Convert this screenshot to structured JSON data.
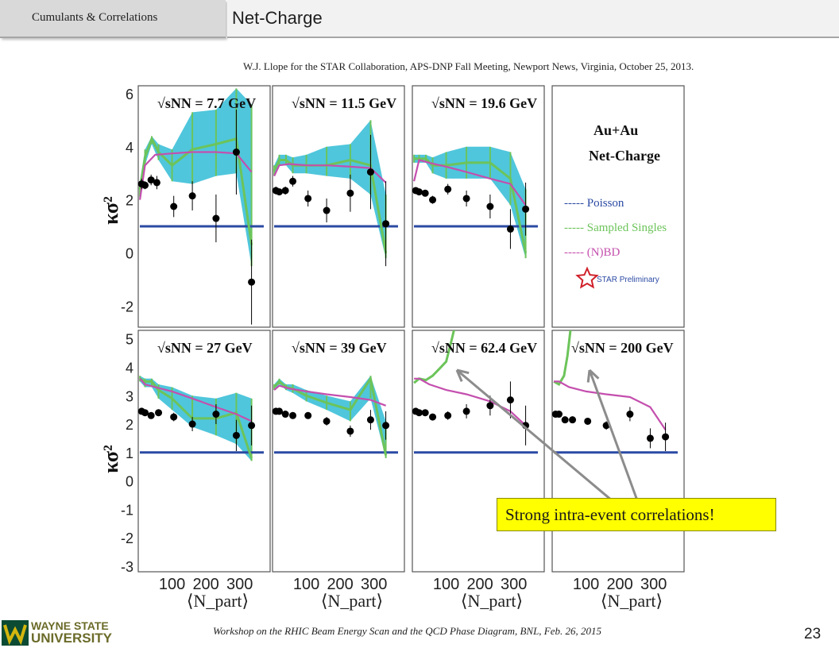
{
  "header": {
    "section_tab": "Cumulants & Correlations",
    "slide_title": "Net-Charge"
  },
  "citation": "W.J. Llope for the STAR Collaboration, APS-DNP Fall Meeting, Newport News, Virginia, October 25, 2013.",
  "callout": "Strong intra-event correlations!",
  "footer": {
    "workshop": "Workshop on the RHIC Beam Energy Scan and the QCD Phase Diagram, BNL, Feb. 26, 2015",
    "page_number": "23",
    "logo_line1": "WAYNE STATE",
    "logo_line2": "UNIVERSITY"
  },
  "colors": {
    "band_fill": "#4fc6dc",
    "sampled_singles": "#6cc45a",
    "nbd": "#c44fae",
    "poisson": "#2b4aa3",
    "data_points": "#000000",
    "callout_bg": "#ffff00"
  },
  "chart_data": {
    "type": "scatter",
    "xlabel": "⟨N_part⟩",
    "ylabel": "κσ²",
    "x_ticks": [
      "100",
      "200",
      "300"
    ],
    "grid": false,
    "legend_panel": {
      "title1": "Au+Au",
      "title2": "Net-Charge",
      "entries": [
        {
          "label": "----- Poisson",
          "color": "#2b4aa3"
        },
        {
          "label": "----- Sampled Singles",
          "color": "#6cc45a"
        },
        {
          "label": "----- (N)BD",
          "color": "#c44fae"
        }
      ],
      "preliminary": "STAR Preliminary"
    },
    "rows": [
      {
        "ylim": [
          -2.8,
          6.3
        ],
        "y_ticks": [
          "6",
          "4",
          "2",
          "0",
          "-2"
        ],
        "panels": [
          {
            "energy": "7.7 GeV",
            "points": {
              "x": [
                10,
                20,
                38,
                55,
                105,
                160,
                230,
                290,
                335
              ],
              "y": [
                2.6,
                2.55,
                2.75,
                2.65,
                1.75,
                2.15,
                1.3,
                3.8,
                -1.1
              ],
              "err": [
                0.2,
                0.15,
                0.2,
                0.25,
                0.4,
                0.55,
                0.9,
                1.6,
                1.6
              ]
            },
            "nbd": {
              "x": [
                5,
                20,
                50,
                100,
                160,
                230,
                290,
                335
              ],
              "y": [
                2.0,
                3.3,
                3.7,
                3.75,
                3.8,
                3.8,
                3.75,
                3.05
              ]
            },
            "sampled": {
              "x": [
                5,
                20,
                40,
                60,
                100,
                160,
                230,
                290,
                335
              ],
              "y": [
                2.4,
                3.6,
                4.3,
                3.8,
                3.3,
                3.9,
                4.1,
                4.3,
                0.3
              ]
            },
            "band_hi": [
              2.7,
              3.9,
              4.4,
              4.1,
              3.9,
              5.3,
              5.4,
              6.2,
              5.6
            ],
            "band_lo": [
              2.1,
              3.3,
              4.1,
              3.5,
              2.7,
              2.6,
              2.9,
              3.0,
              -0.5
            ]
          },
          {
            "energy": "11.5 GeV",
            "points": {
              "x": [
                10,
                20,
                38,
                60,
                105,
                160,
                230,
                290,
                335
              ],
              "y": [
                2.35,
                2.3,
                2.35,
                2.7,
                2.05,
                1.6,
                2.25,
                3.05,
                1.1
              ],
              "err": [
                0.15,
                0.12,
                0.15,
                0.2,
                0.3,
                0.45,
                0.7,
                1.4,
                1.6
              ]
            },
            "nbd": {
              "x": [
                5,
                20,
                50,
                100,
                160,
                230,
                290,
                335
              ],
              "y": [
                2.9,
                3.3,
                3.35,
                3.3,
                3.3,
                3.25,
                3.2,
                2.65
              ]
            },
            "sampled": {
              "x": [
                5,
                20,
                40,
                60,
                100,
                160,
                230,
                290,
                335
              ],
              "y": [
                3.1,
                3.5,
                3.5,
                3.3,
                3.3,
                3.3,
                3.5,
                3.3,
                0.0
              ]
            },
            "band_hi": [
              3.3,
              3.7,
              3.7,
              3.6,
              3.7,
              4.0,
              4.1,
              5.0,
              2.2
            ],
            "band_lo": [
              2.9,
              3.3,
              3.3,
              3.0,
              3.0,
              2.9,
              2.8,
              2.2,
              -0.2
            ]
          },
          {
            "energy": "19.6 GeV",
            "points": {
              "x": [
                10,
                20,
                38,
                60,
                105,
                160,
                230,
                290,
                335
              ],
              "y": [
                2.35,
                2.3,
                2.25,
                2.0,
                2.4,
                2.05,
                1.75,
                0.9,
                1.65
              ],
              "err": [
                0.1,
                0.1,
                0.12,
                0.15,
                0.2,
                0.3,
                0.45,
                0.75,
                1.0
              ]
            },
            "nbd": {
              "x": [
                5,
                20,
                50,
                100,
                160,
                230,
                290,
                335
              ],
              "y": [
                2.7,
                3.5,
                3.4,
                3.25,
                3.05,
                2.8,
                2.6,
                1.8
              ]
            },
            "sampled": {
              "x": [
                5,
                20,
                40,
                60,
                100,
                160,
                230,
                290,
                335
              ],
              "y": [
                3.55,
                3.55,
                3.55,
                3.3,
                3.3,
                3.4,
                3.4,
                2.8,
                0.0
              ]
            },
            "band_hi": [
              3.7,
              3.7,
              3.7,
              3.6,
              3.8,
              4.0,
              4.0,
              3.8,
              2.4
            ],
            "band_lo": [
              3.4,
              3.4,
              3.4,
              3.0,
              2.8,
              2.8,
              2.8,
              1.8,
              -0.2
            ]
          }
        ]
      },
      {
        "ylim": [
          -3.2,
          5.3
        ],
        "y_ticks": [
          "5",
          "4",
          "3",
          "2",
          "1",
          "0",
          "-1",
          "-2",
          "-3"
        ],
        "panels": [
          {
            "energy": "27 GeV",
            "points": {
              "x": [
                10,
                20,
                38,
                60,
                105,
                160,
                230,
                290,
                335
              ],
              "y": [
                2.45,
                2.4,
                2.3,
                2.4,
                2.25,
                2.0,
                2.35,
                1.6,
                1.95
              ],
              "err": [
                0.08,
                0.08,
                0.1,
                0.12,
                0.15,
                0.25,
                0.35,
                0.55,
                0.7
              ]
            },
            "nbd": {
              "x": [
                5,
                20,
                50,
                100,
                160,
                230,
                290,
                335
              ],
              "y": [
                3.6,
                3.4,
                3.3,
                3.15,
                2.9,
                2.6,
                2.35,
                2.1
              ]
            },
            "sampled": {
              "x": [
                5,
                20,
                40,
                60,
                100,
                160,
                230,
                290,
                335
              ],
              "y": [
                3.6,
                3.5,
                3.5,
                3.2,
                2.9,
                2.2,
                2.2,
                2.4,
                0.8
              ]
            },
            "band_hi": [
              3.7,
              3.6,
              3.6,
              3.4,
              3.3,
              3.0,
              2.9,
              3.1,
              2.9
            ],
            "band_lo": [
              3.5,
              3.3,
              3.3,
              2.9,
              2.5,
              1.9,
              1.6,
              1.3,
              0.7
            ]
          },
          {
            "energy": "39 GeV",
            "points": {
              "x": [
                10,
                20,
                38,
                60,
                105,
                160,
                230,
                290,
                335
              ],
              "y": [
                2.45,
                2.45,
                2.35,
                2.3,
                2.3,
                2.1,
                1.75,
                2.15,
                1.95
              ],
              "err": [
                0.06,
                0.06,
                0.08,
                0.1,
                0.1,
                0.15,
                0.2,
                0.35,
                0.5
              ]
            },
            "nbd": {
              "x": [
                5,
                20,
                50,
                100,
                160,
                230,
                290,
                335
              ],
              "y": [
                3.2,
                3.35,
                3.25,
                3.15,
                3.05,
                2.95,
                2.85,
                2.65
              ]
            },
            "sampled": {
              "x": [
                5,
                20,
                40,
                60,
                100,
                160,
                230,
                290,
                335
              ],
              "y": [
                3.3,
                3.5,
                3.3,
                3.25,
                3.0,
                2.75,
                2.5,
                3.6,
                0.9
              ]
            },
            "band_hi": [
              3.4,
              3.6,
              3.4,
              3.4,
              3.2,
              3.0,
              2.8,
              3.7,
              2.1
            ],
            "band_lo": [
              3.2,
              3.4,
              3.2,
              3.1,
              2.8,
              2.5,
              2.1,
              2.9,
              0.8
            ]
          },
          {
            "energy": "62.4 GeV",
            "points": {
              "x": [
                10,
                20,
                38,
                60,
                105,
                160,
                230,
                290,
                335
              ],
              "y": [
                2.45,
                2.4,
                2.4,
                2.25,
                2.3,
                2.45,
                2.65,
                2.85,
                1.95
              ],
              "err": [
                0.06,
                0.06,
                0.08,
                0.1,
                0.15,
                0.25,
                0.35,
                0.65,
                0.7
              ]
            },
            "nbd": {
              "x": [
                5,
                20,
                50,
                100,
                160,
                230,
                290,
                335
              ],
              "y": [
                3.6,
                3.6,
                3.4,
                3.2,
                3.05,
                2.8,
                2.45,
                1.95
              ]
            },
            "sampled": {
              "x": [
                5,
                20,
                40,
                60,
                80,
                100,
                115,
                125
              ],
              "y": [
                3.45,
                3.6,
                3.55,
                3.7,
                3.95,
                4.2,
                4.9,
                5.4
              ]
            }
          },
          {
            "energy": "200 GeV",
            "points": {
              "x": [
                10,
                20,
                38,
                60,
                105,
                160,
                230,
                290,
                335
              ],
              "y": [
                2.35,
                2.35,
                2.15,
                2.15,
                2.1,
                1.95,
                2.35,
                1.5,
                1.55
              ],
              "err": [
                0.05,
                0.05,
                0.06,
                0.08,
                0.1,
                0.15,
                0.25,
                0.35,
                0.5
              ]
            },
            "nbd": {
              "x": [
                5,
                20,
                50,
                100,
                160,
                230,
                290,
                335
              ],
              "y": [
                3.5,
                3.5,
                3.3,
                3.15,
                3.05,
                2.95,
                2.6,
                1.8
              ]
            },
            "sampled": {
              "x": [
                5,
                20,
                35,
                45,
                55
              ],
              "y": [
                3.5,
                3.4,
                3.7,
                4.4,
                5.4
              ]
            }
          }
        ]
      }
    ]
  }
}
